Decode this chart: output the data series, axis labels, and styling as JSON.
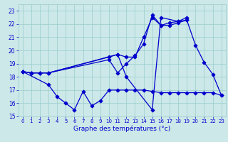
{
  "background_color": "#cce8e8",
  "grid_color": "#99cccc",
  "line_color": "#0000cc",
  "xlabel": "Graphe des températures (°c)",
  "xlabel_color": "#0000cc",
  "xlim": [
    -0.5,
    23.5
  ],
  "ylim": [
    15,
    23.5
  ],
  "yticks": [
    15,
    16,
    17,
    18,
    19,
    20,
    21,
    22,
    23
  ],
  "xticks": [
    0,
    1,
    2,
    3,
    4,
    5,
    6,
    7,
    8,
    9,
    10,
    11,
    12,
    13,
    14,
    15,
    16,
    17,
    18,
    19,
    20,
    21,
    22,
    23
  ],
  "series": [
    {
      "x": [
        0,
        1,
        2,
        3,
        10,
        11,
        12,
        13,
        14,
        15,
        16,
        17,
        18,
        19,
        20,
        21,
        22,
        23
      ],
      "y": [
        18.4,
        18.3,
        18.3,
        18.3,
        19.5,
        19.7,
        19.5,
        19.5,
        21.0,
        22.5,
        21.9,
        21.9,
        22.1,
        22.3,
        20.4,
        19.1,
        18.2,
        16.6
      ]
    },
    {
      "x": [
        0,
        1,
        2,
        3,
        11,
        12,
        15,
        16,
        18,
        19
      ],
      "y": [
        18.4,
        18.3,
        18.3,
        18.3,
        19.7,
        18.0,
        15.5,
        22.5,
        22.2,
        22.3
      ]
    },
    {
      "x": [
        0,
        1,
        2,
        3,
        10,
        11,
        12,
        13,
        14,
        15,
        16,
        17,
        18,
        19
      ],
      "y": [
        18.4,
        18.3,
        18.3,
        18.3,
        19.3,
        18.3,
        19.0,
        19.6,
        20.5,
        22.7,
        21.9,
        22.1,
        22.2,
        22.5
      ]
    },
    {
      "x": [
        0,
        3,
        4,
        5,
        6,
        7,
        8,
        9,
        10,
        11,
        12,
        13,
        14,
        15,
        16,
        17,
        18,
        19,
        20,
        21,
        22,
        23
      ],
      "y": [
        18.4,
        17.4,
        16.5,
        16.0,
        15.5,
        16.9,
        15.8,
        16.2,
        17.0,
        17.0,
        17.0,
        17.0,
        17.0,
        16.9,
        16.8,
        16.8,
        16.8,
        16.8,
        16.8,
        16.8,
        16.8,
        16.6
      ]
    }
  ]
}
